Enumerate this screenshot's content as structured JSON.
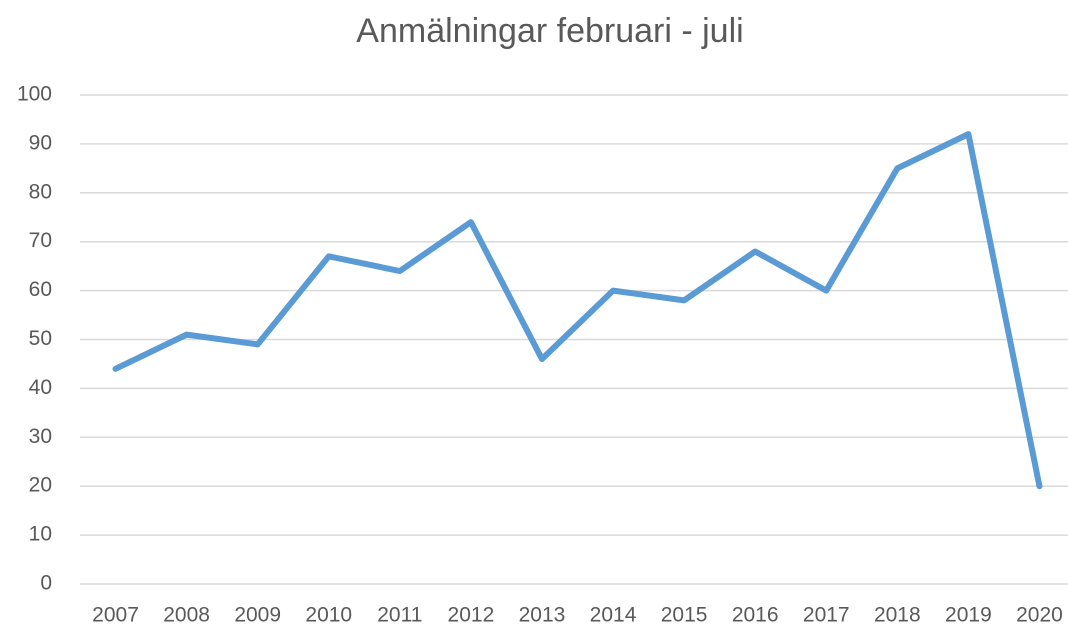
{
  "chart_data": {
    "type": "line",
    "title": "Anmälningar februari - juli",
    "categories": [
      "2007",
      "2008",
      "2009",
      "2010",
      "2011",
      "2012",
      "2013",
      "2014",
      "2015",
      "2016",
      "2017",
      "2018",
      "2019",
      "2020"
    ],
    "values": [
      44,
      51,
      49,
      67,
      64,
      74,
      46,
      60,
      58,
      68,
      60,
      85,
      92,
      20
    ],
    "color": "#5b9bd5",
    "ylim": [
      0,
      100
    ],
    "yticks": [
      0,
      10,
      20,
      30,
      40,
      50,
      60,
      70,
      80,
      90,
      100
    ],
    "grid": true
  }
}
